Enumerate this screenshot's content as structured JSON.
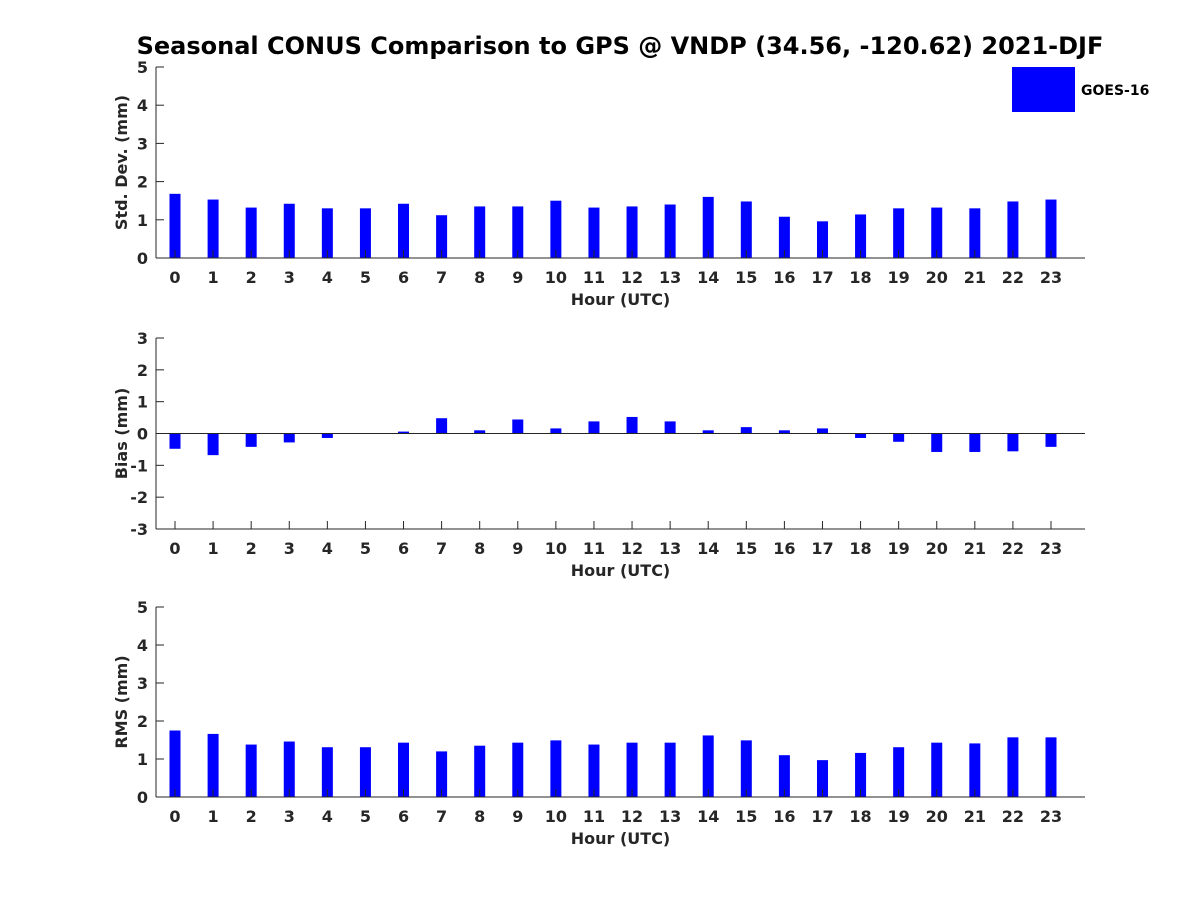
{
  "chart_data": [
    {
      "type": "bar",
      "title": "Seasonal CONUS Comparison to GPS @ VNDP (34.56, -120.62) 2021-DJF",
      "xlabel": "Hour (UTC)",
      "ylabel": "Std. Dev. (mm)",
      "ylim": [
        0,
        5
      ],
      "yticks": [
        0,
        1,
        2,
        3,
        4,
        5
      ],
      "categories": [
        "0",
        "1",
        "2",
        "3",
        "4",
        "5",
        "6",
        "7",
        "8",
        "9",
        "10",
        "11",
        "12",
        "13",
        "14",
        "15",
        "16",
        "17",
        "18",
        "19",
        "20",
        "21",
        "22",
        "23"
      ],
      "series": [
        {
          "name": "GOES-16",
          "color": "#0000ff",
          "values": [
            1.68,
            1.53,
            1.32,
            1.42,
            1.3,
            1.3,
            1.42,
            1.12,
            1.35,
            1.35,
            1.5,
            1.32,
            1.35,
            1.4,
            1.6,
            1.48,
            1.08,
            0.96,
            1.14,
            1.3,
            1.32,
            1.3,
            1.48,
            1.53
          ]
        }
      ],
      "legend": "top-right",
      "grid": false
    },
    {
      "type": "bar",
      "title": "",
      "xlabel": "Hour (UTC)",
      "ylabel": "Bias (mm)",
      "ylim": [
        -3,
        3
      ],
      "yticks": [
        -3,
        -2,
        -1,
        0,
        1,
        2,
        3
      ],
      "categories": [
        "0",
        "1",
        "2",
        "3",
        "4",
        "5",
        "6",
        "7",
        "8",
        "9",
        "10",
        "11",
        "12",
        "13",
        "14",
        "15",
        "16",
        "17",
        "18",
        "19",
        "20",
        "21",
        "22",
        "23"
      ],
      "series": [
        {
          "name": "GOES-16",
          "color": "#0000ff",
          "values": [
            -0.48,
            -0.68,
            -0.42,
            -0.28,
            -0.14,
            0.0,
            0.06,
            0.48,
            0.1,
            0.44,
            0.16,
            0.38,
            0.52,
            0.38,
            0.1,
            0.2,
            0.1,
            0.16,
            -0.14,
            -0.26,
            -0.58,
            -0.58,
            -0.56,
            -0.42
          ]
        }
      ],
      "grid": false
    },
    {
      "type": "bar",
      "title": "",
      "xlabel": "Hour (UTC)",
      "ylabel": "RMS (mm)",
      "ylim": [
        0,
        5
      ],
      "yticks": [
        0,
        1,
        2,
        3,
        4,
        5
      ],
      "categories": [
        "0",
        "1",
        "2",
        "3",
        "4",
        "5",
        "6",
        "7",
        "8",
        "9",
        "10",
        "11",
        "12",
        "13",
        "14",
        "15",
        "16",
        "17",
        "18",
        "19",
        "20",
        "21",
        "22",
        "23"
      ],
      "series": [
        {
          "name": "GOES-16",
          "color": "#0000ff",
          "values": [
            1.75,
            1.66,
            1.38,
            1.46,
            1.31,
            1.31,
            1.43,
            1.2,
            1.35,
            1.43,
            1.49,
            1.38,
            1.43,
            1.43,
            1.62,
            1.49,
            1.1,
            0.97,
            1.16,
            1.31,
            1.43,
            1.41,
            1.57,
            1.57
          ]
        }
      ],
      "grid": false
    }
  ]
}
